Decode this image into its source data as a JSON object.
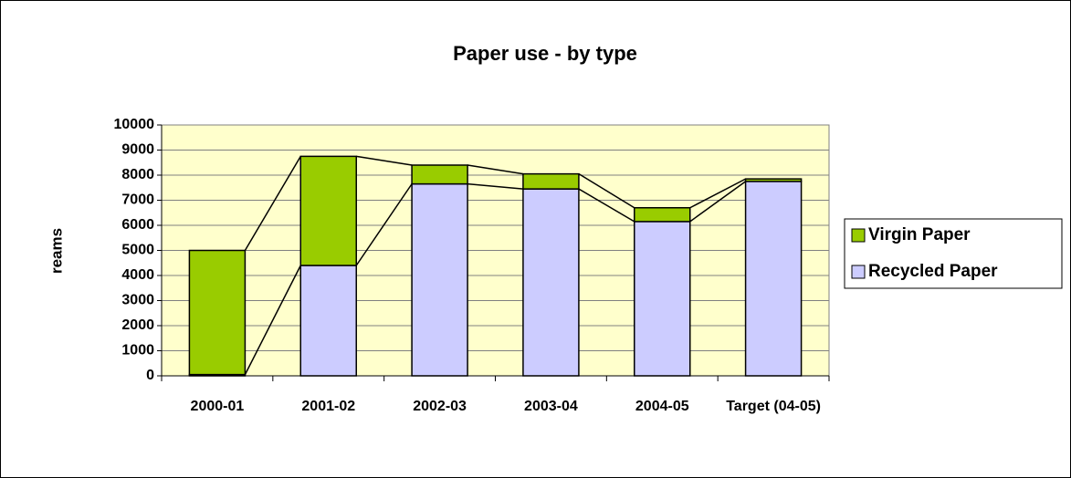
{
  "chart_data": {
    "type": "stacked-bar",
    "title": "Paper use - by type",
    "y_label": "reams",
    "categories": [
      "2000-01",
      "2001-02",
      "2002-03",
      "2003-04",
      "2004-05",
      "Target (04-05)"
    ],
    "series": [
      {
        "name": "Recycled Paper",
        "color": "#ccccff",
        "values": [
          50,
          4400,
          7650,
          7450,
          6150,
          7750
        ]
      },
      {
        "name": "Virgin Paper",
        "color": "#99cc00",
        "values": [
          4950,
          4350,
          750,
          600,
          550,
          100
        ]
      }
    ],
    "ylim": [
      0,
      10000
    ],
    "yticks": [
      0,
      1000,
      2000,
      3000,
      4000,
      5000,
      6000,
      7000,
      8000,
      9000,
      10000
    ],
    "grid": true,
    "legend": "right",
    "plot_background": "#ffffcc"
  }
}
